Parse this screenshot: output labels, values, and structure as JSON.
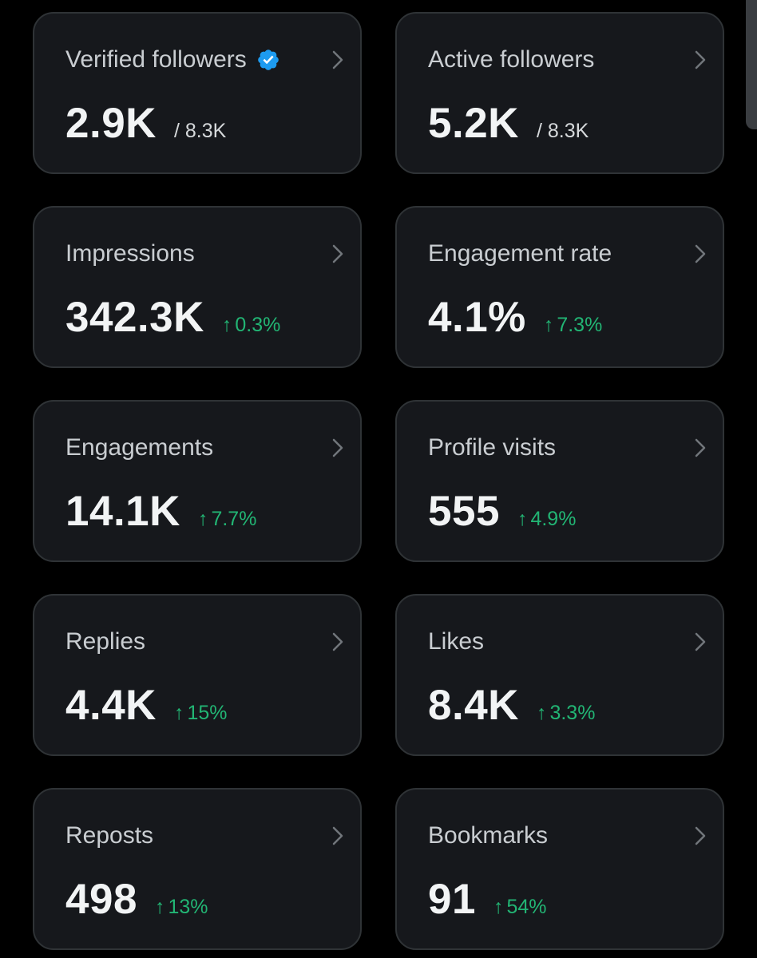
{
  "accent_color": "#1d9bf0",
  "positive_color": "#22b574",
  "cards": [
    {
      "title": "Verified followers",
      "value": "2.9K",
      "total": "/ 8.3K"
    },
    {
      "title": "Active followers",
      "value": "5.2K",
      "total": "/ 8.3K"
    },
    {
      "title": "Impressions",
      "value": "342.3K",
      "arrow": "↑",
      "change": "0.3%"
    },
    {
      "title": "Engagement rate",
      "value": "4.1%",
      "arrow": "↑",
      "change": "7.3%"
    },
    {
      "title": "Engagements",
      "value": "14.1K",
      "arrow": "↑",
      "change": "7.7%"
    },
    {
      "title": "Profile visits",
      "value": "555",
      "arrow": "↑",
      "change": "4.9%"
    },
    {
      "title": "Replies",
      "value": "4.4K",
      "arrow": "↑",
      "change": "15%"
    },
    {
      "title": "Likes",
      "value": "8.4K",
      "arrow": "↑",
      "change": "3.3%"
    },
    {
      "title": "Reposts",
      "value": "498",
      "arrow": "↑",
      "change": "13%"
    },
    {
      "title": "Bookmarks",
      "value": "91",
      "arrow": "↑",
      "change": "54%"
    }
  ]
}
